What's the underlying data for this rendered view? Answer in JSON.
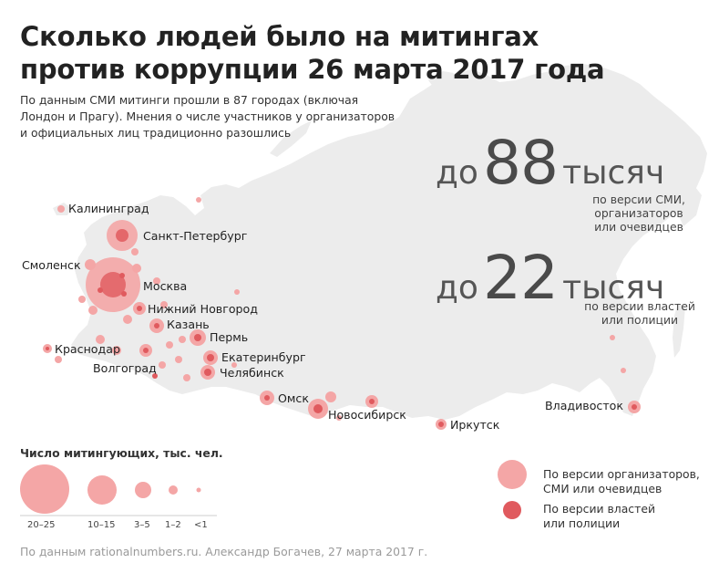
{
  "title_line1": "Сколько людей было на митингах",
  "title_line2": "против коррупции 26 марта 2017 года",
  "subtitle_line1": "По данным СМИ митинги прошли в 87 городах (включая",
  "subtitle_line2": "Лондон и Прагу). Мнения о числе участников у организаторов",
  "subtitle_line3": "и официальных лиц традиционно разошлись",
  "stat_media": {
    "prefix": "до",
    "number": "88",
    "unit": "тысяч",
    "note_line1": "по версии СМИ,",
    "note_line2": "организаторов",
    "note_line3": "или очевидцев"
  },
  "stat_official": {
    "prefix": "до",
    "number": "22",
    "unit": "тысяч",
    "note_line1": "по версии властей",
    "note_line2": "или полиции"
  },
  "cities": {
    "kaliningrad": "Калининград",
    "spb": "Санкт-Петербург",
    "smolensk": "Смоленск",
    "moscow": "Москва",
    "nnovgorod": "Нижний Новгород",
    "kazan": "Казань",
    "perm": "Пермь",
    "krasnodar": "Краснодар",
    "volgograd": "Волгоград",
    "ekaterinburg": "Екатеринбург",
    "chelyabinsk": "Челябинск",
    "omsk": "Омск",
    "novosibirsk": "Новосибирск",
    "irkutsk": "Иркутск",
    "vladivostok": "Владивосток"
  },
  "legend": {
    "title": "Число митингующих, тыс. чел.",
    "sizes": [
      "20–25",
      "10–15",
      "3–5",
      "1–2",
      "<1"
    ],
    "organizers_line1": "По версии организаторов,",
    "organizers_line2": "СМИ или очевидцев",
    "officials_line1": "По версии властей",
    "officials_line2": "или полиции"
  },
  "colors": {
    "organizers": "#f4a6a6",
    "officials": "#e05a5e",
    "land": "#ececec"
  },
  "footer": "По данным rationalnumbers.ru. Александр Богачев, 27 марта 2017 г."
}
